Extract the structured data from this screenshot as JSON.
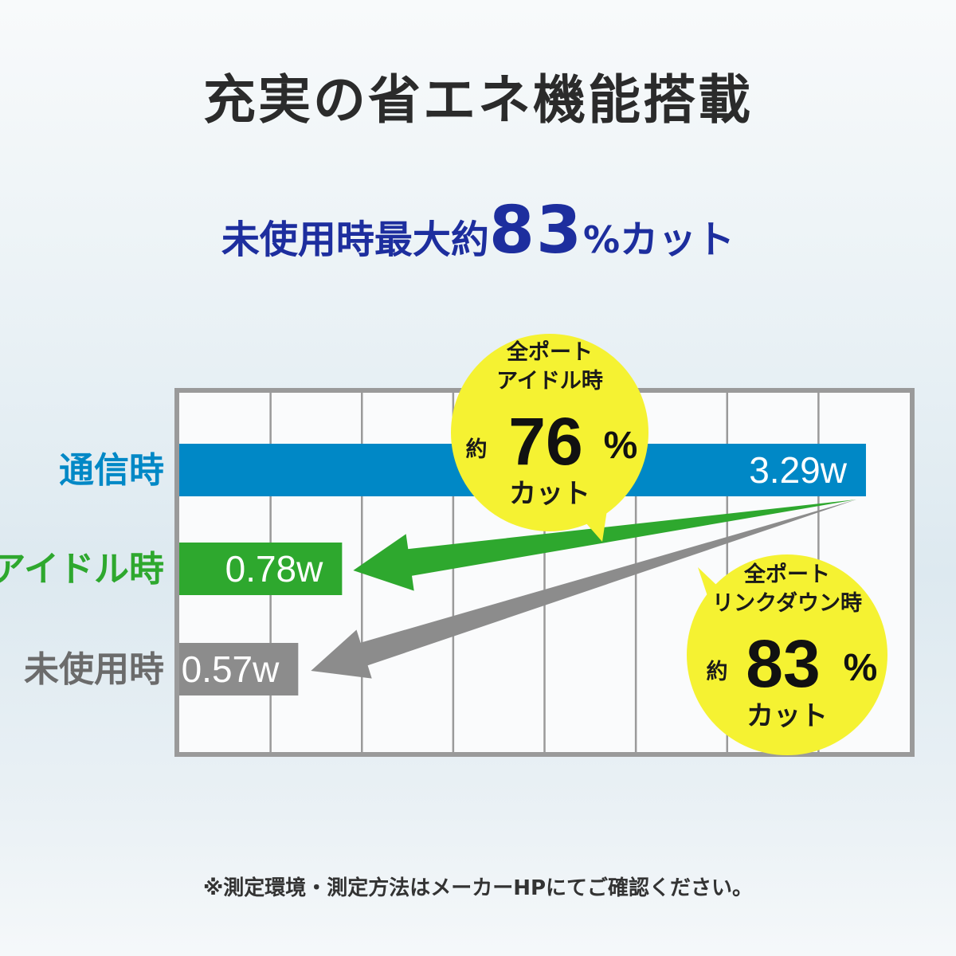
{
  "title": "充実の省エネ機能搭載",
  "subtitle": {
    "prefix": "未使用時最大約",
    "number": "83",
    "percent": "%",
    "suffix": "カット"
  },
  "footnote": "※測定環境・測定方法はメーカーHPにてご確認ください。",
  "chart_data": {
    "type": "bar",
    "orientation": "horizontal",
    "categories": [
      "通信時",
      "アイドル時",
      "未使用時"
    ],
    "values": [
      3.29,
      0.78,
      0.57
    ],
    "value_labels": [
      "3.29w",
      "0.78w",
      "0.57w"
    ],
    "unit": "w",
    "xlim": [
      0,
      3.5
    ],
    "grid": true,
    "colors": [
      "#0088c6",
      "#2ea82e",
      "#8c8c8c"
    ],
    "callouts": [
      {
        "line1": "全ポート",
        "line2": "アイドル時",
        "approx": "約",
        "number": "76",
        "percent": "%",
        "cut": "カット",
        "target": "アイドル時"
      },
      {
        "line1": "全ポート",
        "line2": "リンクダウン時",
        "approx": "約",
        "number": "83",
        "percent": "%",
        "cut": "カット",
        "target": "未使用時"
      }
    ],
    "bubble_color": "#f5f232"
  }
}
